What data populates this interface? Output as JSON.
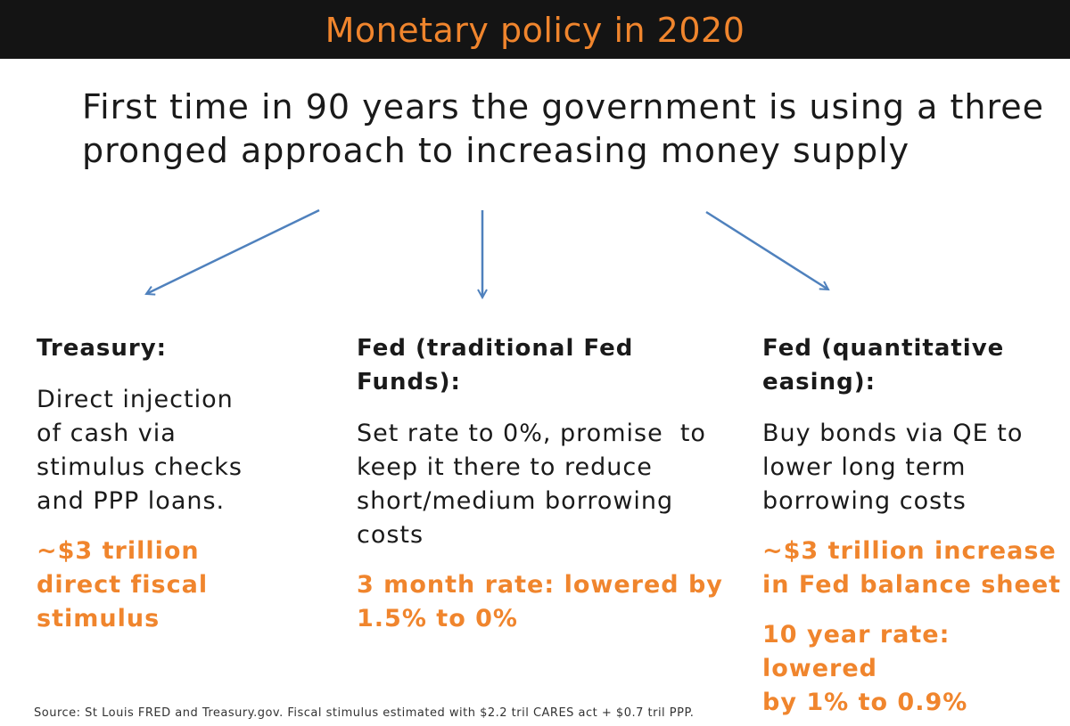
{
  "title": "Monetary policy in 2020",
  "headline": {
    "line1": "First time in 90 years the government is using a three",
    "line2": "pronged approach to increasing money supply"
  },
  "columns": [
    {
      "heading": [
        "Treasury:"
      ],
      "body": [
        "Direct injection",
        "of cash via",
        "stimulus checks",
        "and PPP loans."
      ],
      "highlights": [
        [
          "~$3 trillion",
          "direct fiscal",
          "stimulus"
        ]
      ]
    },
    {
      "heading": [
        "Fed (traditional Fed",
        "Funds):"
      ],
      "body": [
        "Set rate to 0%, promise  to",
        "keep it there to reduce",
        "short/medium borrowing",
        "costs"
      ],
      "highlights": [
        [
          "3 month rate: lowered by",
          "1.5% to 0%"
        ]
      ]
    },
    {
      "heading": [
        "Fed (quantitative",
        "easing):"
      ],
      "body": [
        "Buy bonds via QE to",
        "lower long term",
        "borrowing costs"
      ],
      "highlights": [
        [
          "~$3 trillion increase",
          "in Fed balance sheet"
        ],
        [
          "10 year rate: lowered",
          "by 1% to 0.9%"
        ]
      ]
    }
  ],
  "source": "Source: St Louis FRED and Treasury.gov. Fiscal stimulus estimated with $2.2 tril CARES act + $0.7 tril PPP.",
  "colors": {
    "title_bar": "#141414",
    "accent_orange": "#f0852d",
    "arrow_blue": "#4f81bd",
    "text": "#1a1a1a"
  }
}
